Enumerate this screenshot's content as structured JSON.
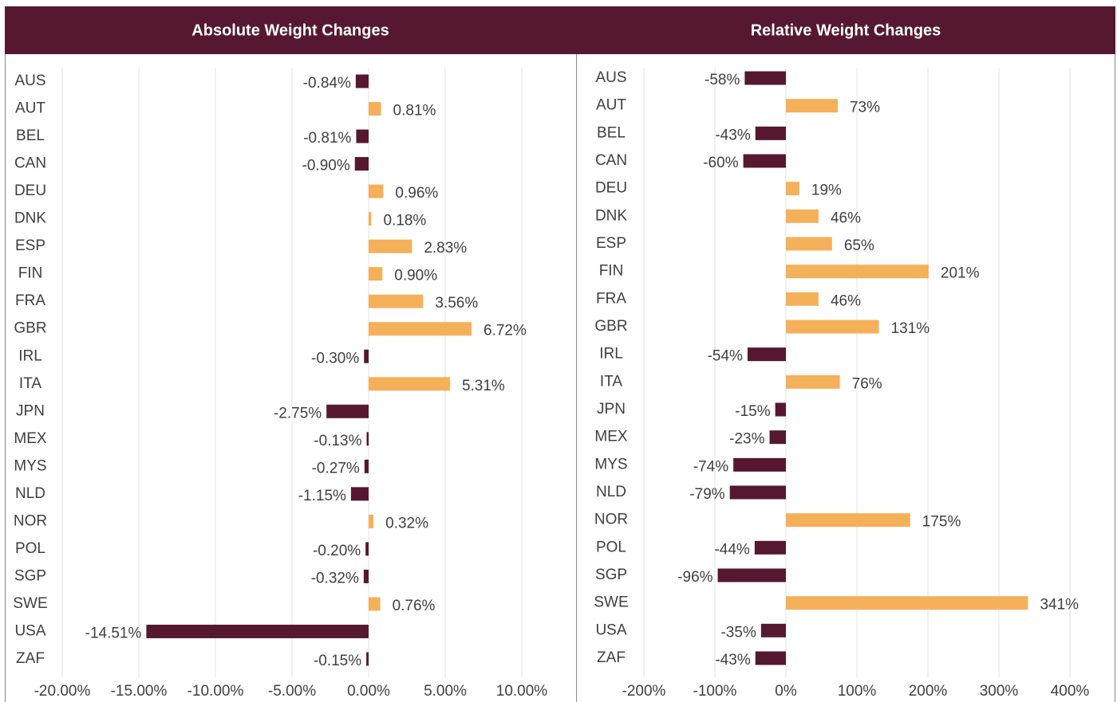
{
  "chart_data": [
    {
      "type": "bar",
      "orientation": "horizontal",
      "title": "Absolute Weight Changes",
      "categories": [
        "AUS",
        "AUT",
        "BEL",
        "CAN",
        "DEU",
        "DNK",
        "ESP",
        "FIN",
        "FRA",
        "GBR",
        "IRL",
        "ITA",
        "JPN",
        "MEX",
        "MYS",
        "NLD",
        "NOR",
        "POL",
        "SGP",
        "SWE",
        "USA",
        "ZAF"
      ],
      "values": [
        -0.84,
        0.81,
        -0.81,
        -0.9,
        0.96,
        0.18,
        2.83,
        0.9,
        3.56,
        6.72,
        -0.3,
        5.31,
        -2.75,
        -0.13,
        -0.27,
        -1.15,
        0.32,
        -0.2,
        -0.32,
        0.76,
        -14.51,
        -0.15
      ],
      "value_labels": [
        "-0.84%",
        "0.81%",
        "-0.81%",
        "-0.90%",
        "0.96%",
        "0.18%",
        "2.83%",
        "0.90%",
        "3.56%",
        "6.72%",
        "-0.30%",
        "5.31%",
        "-2.75%",
        "-0.13%",
        "-0.27%",
        "-1.15%",
        "0.32%",
        "-0.20%",
        "-0.32%",
        "0.76%",
        "-14.51%",
        "-0.15%"
      ],
      "positive_color": "#f5b05a",
      "negative_color": "#561830",
      "xlim": [
        -20,
        10
      ],
      "xticks": [
        {
          "value": -20,
          "label": "-20.00%"
        },
        {
          "value": -15,
          "label": "-15.00%"
        },
        {
          "value": -10,
          "label": "-10.00%"
        },
        {
          "value": -5,
          "label": "-5.00%"
        },
        {
          "value": 0,
          "label": "0.00%"
        },
        {
          "value": 5,
          "label": "5.00%"
        },
        {
          "value": 10,
          "label": "10.00%"
        }
      ],
      "grid": true
    },
    {
      "type": "bar",
      "orientation": "horizontal",
      "title": "Relative Weight Changes",
      "categories": [
        "AUS",
        "AUT",
        "BEL",
        "CAN",
        "DEU",
        "DNK",
        "ESP",
        "FIN",
        "FRA",
        "GBR",
        "IRL",
        "ITA",
        "JPN",
        "MEX",
        "MYS",
        "NLD",
        "NOR",
        "POL",
        "SGP",
        "SWE",
        "USA",
        "ZAF"
      ],
      "values": [
        -58,
        73,
        -43,
        -60,
        19,
        46,
        65,
        201,
        46,
        131,
        -54,
        76,
        -15,
        -23,
        -74,
        -79,
        175,
        -44,
        -96,
        341,
        -35,
        -43
      ],
      "value_labels": [
        "-58%",
        "73%",
        "-43%",
        "-60%",
        "19%",
        "46%",
        "65%",
        "201%",
        "46%",
        "131%",
        "-54%",
        "76%",
        "-15%",
        "-23%",
        "-74%",
        "-79%",
        "175%",
        "-44%",
        "-96%",
        "341%",
        "-35%",
        "-43%"
      ],
      "positive_color": "#f5b05a",
      "negative_color": "#561830",
      "xlim": [
        -200,
        400
      ],
      "xticks": [
        {
          "value": -200,
          "label": "-200%"
        },
        {
          "value": -100,
          "label": "-100%"
        },
        {
          "value": 0,
          "label": "0%"
        },
        {
          "value": 100,
          "label": "100%"
        },
        {
          "value": 200,
          "label": "200%"
        },
        {
          "value": 300,
          "label": "300%"
        },
        {
          "value": 400,
          "label": "400%"
        }
      ],
      "grid": true
    }
  ]
}
